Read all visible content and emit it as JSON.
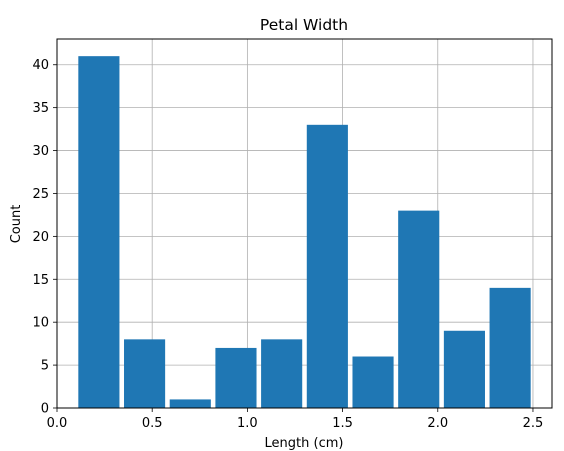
{
  "chart_data": {
    "type": "bar",
    "title": "Petal Width",
    "xlabel": "Length (cm)",
    "ylabel": "Count",
    "xlim": [
      0.0,
      2.6
    ],
    "ylim": [
      0,
      43
    ],
    "xticks": [
      0.0,
      0.5,
      1.0,
      1.5,
      2.0,
      2.5
    ],
    "xtick_labels": [
      "0.0",
      "0.5",
      "1.0",
      "1.5",
      "2.0",
      "2.5"
    ],
    "yticks": [
      0,
      5,
      10,
      15,
      20,
      25,
      30,
      35,
      40
    ],
    "ytick_labels": [
      "0",
      "5",
      "10",
      "15",
      "20",
      "25",
      "30",
      "35",
      "40"
    ],
    "grid": true,
    "bar_color": "#1f77b4",
    "bins": [
      {
        "x0": 0.1,
        "x1": 0.34,
        "count": 41
      },
      {
        "x0": 0.34,
        "x1": 0.58,
        "count": 8
      },
      {
        "x0": 0.58,
        "x1": 0.82,
        "count": 1
      },
      {
        "x0": 0.82,
        "x1": 1.06,
        "count": 7
      },
      {
        "x0": 1.06,
        "x1": 1.3,
        "count": 8
      },
      {
        "x0": 1.3,
        "x1": 1.54,
        "count": 33
      },
      {
        "x0": 1.54,
        "x1": 1.78,
        "count": 6
      },
      {
        "x0": 1.78,
        "x1": 2.02,
        "count": 23
      },
      {
        "x0": 2.02,
        "x1": 2.26,
        "count": 9
      },
      {
        "x0": 2.26,
        "x1": 2.5,
        "count": 14
      }
    ],
    "rwidth": 0.9
  }
}
